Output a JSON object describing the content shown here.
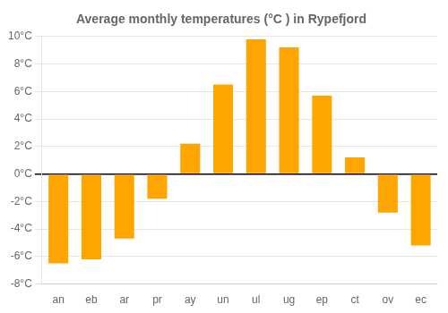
{
  "chart_data": {
    "type": "bar",
    "title": "Average monthly temperatures (°C ) in Rypefjord",
    "categories": [
      "an",
      "eb",
      "ar",
      "pr",
      "ay",
      "un",
      "ul",
      "ug",
      "ep",
      "ct",
      "ov",
      "ec"
    ],
    "values": [
      -6.5,
      -6.2,
      -4.7,
      -1.8,
      2.2,
      6.5,
      9.8,
      9.2,
      5.7,
      1.2,
      -2.8,
      -5.2
    ],
    "color": "#FFA500",
    "ylim": [
      -8,
      10
    ],
    "yticks": [
      {
        "value": -8,
        "label": "-8°C"
      },
      {
        "value": -6,
        "label": "-6°C"
      },
      {
        "value": -4,
        "label": "-4°C"
      },
      {
        "value": -2,
        "label": "-2°C"
      },
      {
        "value": 0,
        "label": "0°C"
      },
      {
        "value": 2,
        "label": "2°C"
      },
      {
        "value": 4,
        "label": "4°C"
      },
      {
        "value": 6,
        "label": "6°C"
      },
      {
        "value": 8,
        "label": "8°C"
      },
      {
        "value": 10,
        "label": "10°C"
      }
    ],
    "grid": true
  }
}
